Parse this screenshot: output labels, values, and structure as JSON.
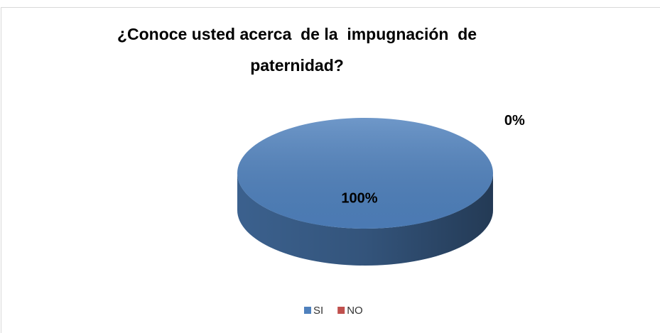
{
  "chart_data": {
    "type": "pie",
    "title": "¿Conoce usted acerca  de la  impugnación  de paternidad?",
    "categories": [
      "SI",
      "NO"
    ],
    "values": [
      100,
      0
    ],
    "value_labels": [
      "100%",
      "0%"
    ],
    "colors": [
      "#4f81bd",
      "#c0504d"
    ],
    "legend": "bottom"
  }
}
